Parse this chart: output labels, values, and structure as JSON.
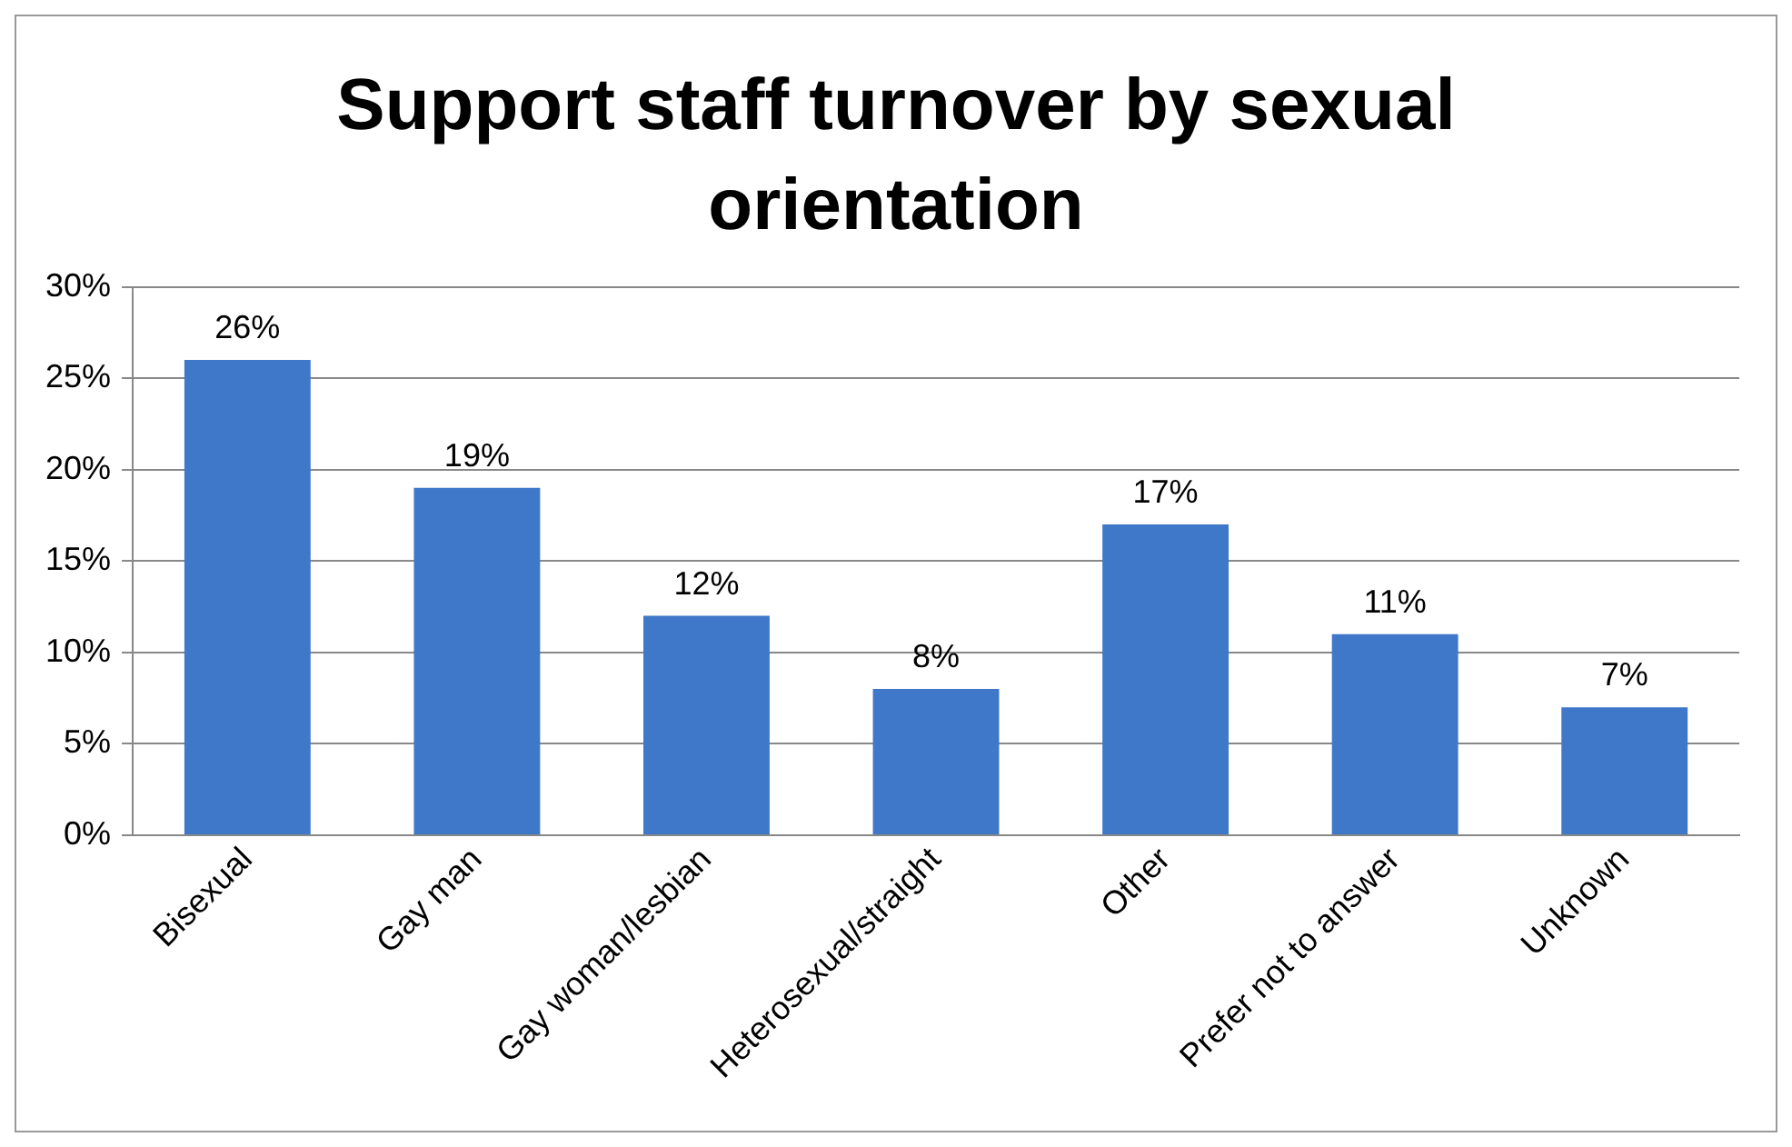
{
  "chart_data": {
    "type": "bar",
    "title": "Support staff turnover by sexual orientation",
    "categories": [
      "Bisexual",
      "Gay man",
      "Gay woman/lesbian",
      "Heterosexual/straight",
      "Other",
      "Prefer not to answer",
      "Unknown"
    ],
    "values": [
      26,
      19,
      12,
      8,
      17,
      11,
      7
    ],
    "value_labels": [
      "26%",
      "19%",
      "12%",
      "8%",
      "17%",
      "11%",
      "7%"
    ],
    "color": "#3f78c8",
    "ylim": [
      0,
      30
    ],
    "yticks": [
      {
        "value": 0,
        "label": "0%"
      },
      {
        "value": 5,
        "label": "5%"
      },
      {
        "value": 10,
        "label": "10%"
      },
      {
        "value": 15,
        "label": "15%"
      },
      {
        "value": 20,
        "label": "20%"
      },
      {
        "value": 25,
        "label": "25%"
      },
      {
        "value": 30,
        "label": "30%"
      }
    ],
    "grid": "y",
    "legend": false
  }
}
